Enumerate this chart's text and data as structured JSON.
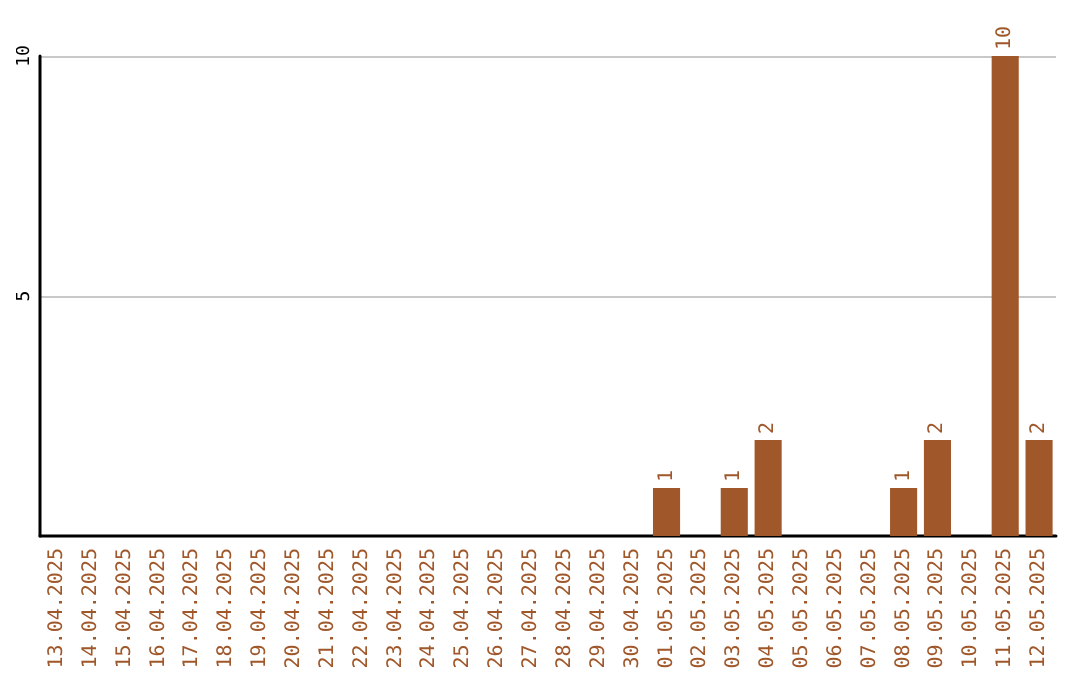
{
  "chart_data": {
    "type": "bar",
    "categories": [
      "13.04.2025",
      "14.04.2025",
      "15.04.2025",
      "16.04.2025",
      "17.04.2025",
      "18.04.2025",
      "19.04.2025",
      "20.04.2025",
      "21.04.2025",
      "22.04.2025",
      "23.04.2025",
      "24.04.2025",
      "25.04.2025",
      "26.04.2025",
      "27.04.2025",
      "28.04.2025",
      "29.04.2025",
      "30.04.2025",
      "01.05.2025",
      "02.05.2025",
      "03.05.2025",
      "04.05.2025",
      "05.05.2025",
      "06.05.2025",
      "07.05.2025",
      "08.05.2025",
      "09.05.2025",
      "10.05.2025",
      "11.05.2025",
      "12.05.2025"
    ],
    "values": [
      0,
      0,
      0,
      0,
      0,
      0,
      0,
      0,
      0,
      0,
      0,
      0,
      0,
      0,
      0,
      0,
      0,
      0,
      1,
      0,
      1,
      2,
      0,
      0,
      0,
      1,
      2,
      0,
      10,
      2
    ],
    "value_labels": [
      null,
      null,
      null,
      null,
      null,
      null,
      null,
      null,
      null,
      null,
      null,
      null,
      null,
      null,
      null,
      null,
      null,
      null,
      "1",
      null,
      "1",
      "2",
      null,
      null,
      null,
      "1",
      "2",
      null,
      "10",
      "2"
    ],
    "color": "#a0572a",
    "ylim": [
      0,
      10
    ],
    "yticks": [
      5,
      10
    ],
    "grid": "y"
  }
}
